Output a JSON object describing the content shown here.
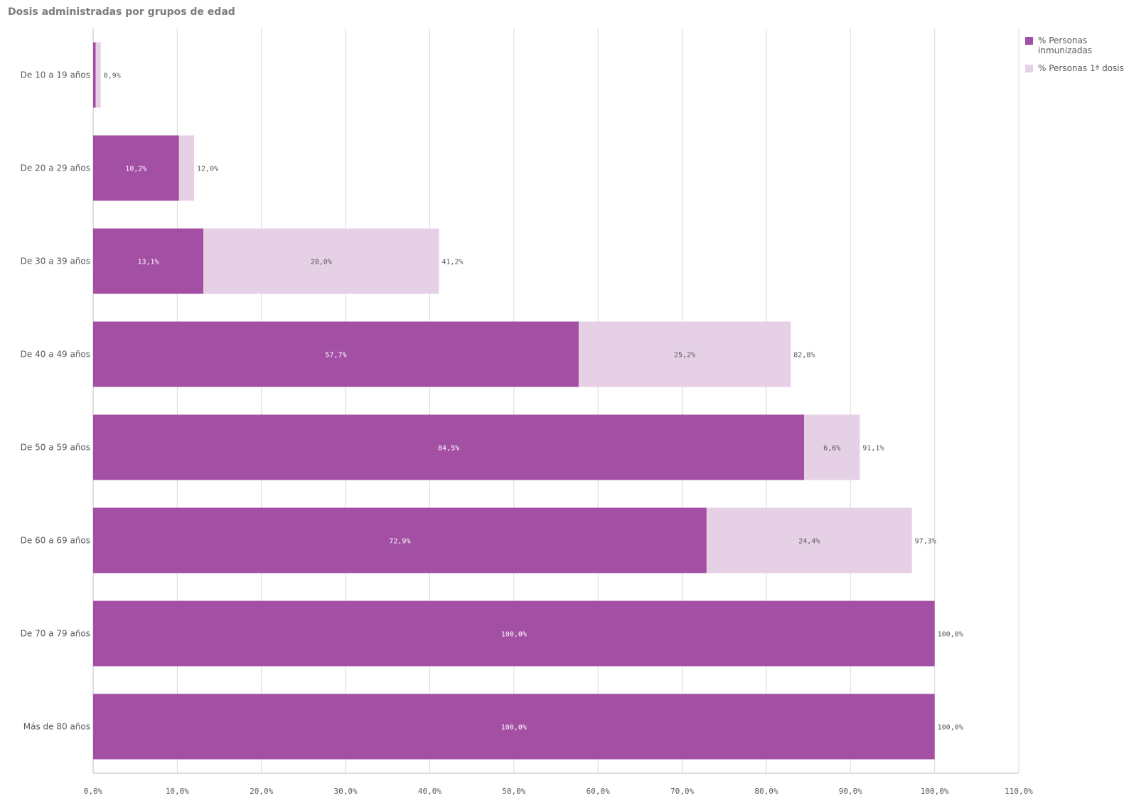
{
  "chart_data": {
    "type": "bar",
    "orientation": "horizontal",
    "stacked": true,
    "title": "Dosis administradas por grupos de edad",
    "categories": [
      "De 10 a 19 años",
      "De 20 a 29 años",
      "De 30 a 39 años",
      "De 40 a 49 años",
      "De 50 a 59 años",
      "De 60 a 69 años",
      "De 70 a 79 años",
      "Más de 80 años"
    ],
    "series": [
      {
        "name": "% Personas inmunizadas",
        "color": "#a34fa3",
        "values": [
          0.3,
          10.2,
          13.1,
          57.7,
          84.5,
          72.9,
          100.0,
          100.0
        ],
        "labels": [
          "",
          "10,2%",
          "13,1%",
          "57,7%",
          "84,5%",
          "72,9%",
          "100,0%",
          "100,0%"
        ]
      },
      {
        "name": "% Personas 1ª dosis",
        "color": "#e6d0e6",
        "values": [
          0.6,
          1.8,
          28.0,
          25.2,
          6.6,
          24.4,
          0.0,
          0.0
        ],
        "labels": [
          "",
          "",
          "28,0%",
          "25,2%",
          "6,6%",
          "24,4%",
          "",
          ""
        ]
      }
    ],
    "totals": [
      "0,9%",
      "12,0%",
      "41,2%",
      "82,8%",
      "91,1%",
      "97,3%",
      "100,0%",
      "100,0%"
    ],
    "xlim": [
      0,
      110
    ],
    "xticks": [
      "0,0%",
      "10,0%",
      "20,0%",
      "30,0%",
      "40,0%",
      "50,0%",
      "60,0%",
      "70,0%",
      "80,0%",
      "90,0%",
      "100,0%",
      "110,0%"
    ],
    "grid": true,
    "legend_position": "top-right"
  },
  "legend": {
    "items": [
      {
        "label": "% Personas inmunizadas",
        "color": "#a34fa3"
      },
      {
        "label": "% Personas 1ª dosis",
        "color": "#e6d0e6"
      }
    ]
  }
}
